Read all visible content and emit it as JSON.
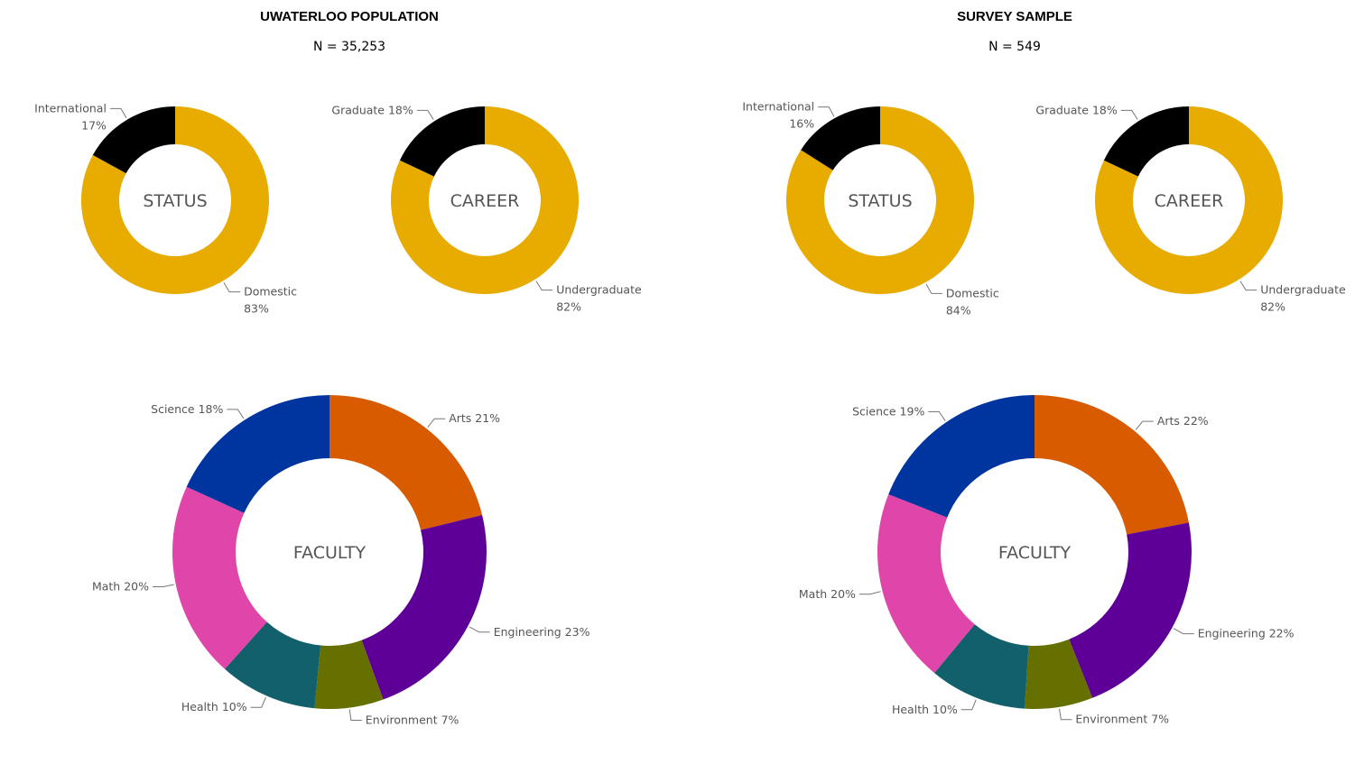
{
  "panels": [
    {
      "title": "UWATERLOO POPULATION",
      "subtitle": "N = 35,253"
    },
    {
      "title": "SURVEY SAMPLE",
      "subtitle": "N = 549"
    }
  ],
  "colors": {
    "Domestic": "#E8AB00",
    "International": "#000000",
    "Undergraduate": "#E8AB00",
    "Graduate": "#000000",
    "Arts": "#D95B00",
    "Engineering": "#5E0097",
    "Environment": "#667000",
    "Health": "#12606B",
    "Math": "#E046A9",
    "Science": "#0035A0"
  },
  "chart_data": [
    {
      "type": "pie",
      "panel": "UWATERLOO POPULATION",
      "center_label": "STATUS",
      "slices": [
        {
          "name": "Domestic",
          "value": 83,
          "line1": "Domestic",
          "line2": "83%"
        },
        {
          "name": "International",
          "value": 17,
          "line1": "International",
          "line2": "17%"
        }
      ]
    },
    {
      "type": "pie",
      "panel": "UWATERLOO POPULATION",
      "center_label": "CAREER",
      "slices": [
        {
          "name": "Undergraduate",
          "value": 82,
          "line1": "Undergraduate",
          "line2": "82%"
        },
        {
          "name": "Graduate",
          "value": 18,
          "line1": "Graduate 18%"
        }
      ]
    },
    {
      "type": "pie",
      "panel": "UWATERLOO POPULATION",
      "center_label": "FACULTY",
      "slices": [
        {
          "name": "Arts",
          "value": 21,
          "line1": "Arts 21%"
        },
        {
          "name": "Engineering",
          "value": 23,
          "line1": "Engineering 23%"
        },
        {
          "name": "Environment",
          "value": 7,
          "line1": "Environment 7%"
        },
        {
          "name": "Health",
          "value": 10,
          "line1": "Health 10%"
        },
        {
          "name": "Math",
          "value": 20,
          "line1": "Math 20%"
        },
        {
          "name": "Science",
          "value": 18,
          "line1": "Science 18%"
        }
      ]
    },
    {
      "type": "pie",
      "panel": "SURVEY SAMPLE",
      "center_label": "STATUS",
      "slices": [
        {
          "name": "Domestic",
          "value": 84,
          "line1": "Domestic",
          "line2": "84%"
        },
        {
          "name": "International",
          "value": 16,
          "line1": "International",
          "line2": "16%"
        }
      ]
    },
    {
      "type": "pie",
      "panel": "SURVEY SAMPLE",
      "center_label": "CAREER",
      "slices": [
        {
          "name": "Undergraduate",
          "value": 82,
          "line1": "Undergraduate",
          "line2": "82%"
        },
        {
          "name": "Graduate",
          "value": 18,
          "line1": "Graduate 18%"
        }
      ]
    },
    {
      "type": "pie",
      "panel": "SURVEY SAMPLE",
      "center_label": "FACULTY",
      "slices": [
        {
          "name": "Arts",
          "value": 22,
          "line1": "Arts 22%"
        },
        {
          "name": "Engineering",
          "value": 22,
          "line1": "Engineering 22%"
        },
        {
          "name": "Environment",
          "value": 7,
          "line1": "Environment 7%"
        },
        {
          "name": "Health",
          "value": 10,
          "line1": "Health 10%"
        },
        {
          "name": "Math",
          "value": 20,
          "line1": "Math 20%"
        },
        {
          "name": "Science",
          "value": 19,
          "line1": "Science 19%"
        }
      ]
    }
  ]
}
